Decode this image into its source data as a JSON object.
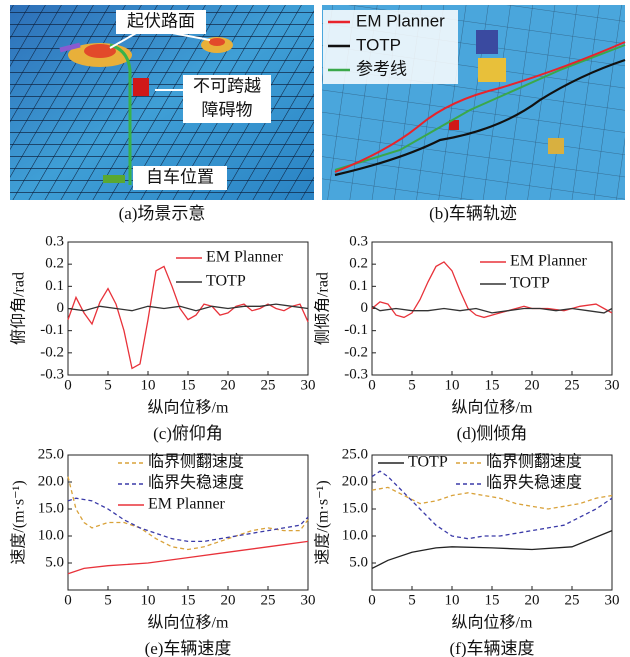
{
  "images": [
    {
      "caption": "(a)场景示意",
      "labels": [
        "起伏路面",
        "不可跨越",
        "障碍物",
        "自车位置"
      ]
    },
    {
      "caption": "(b)车辆轨迹",
      "legend": [
        {
          "name": "EM Planner",
          "color": "#e8232b"
        },
        {
          "name": "TOTP",
          "color": "#111111"
        },
        {
          "name": "参考线",
          "color": "#3aa84a"
        }
      ]
    }
  ],
  "chart_data": [
    {
      "type": "line",
      "caption": "(c)俯仰角",
      "xlabel": "纵向位移/m",
      "ylabel": "俯仰角/rad",
      "xlim": [
        0,
        30
      ],
      "xticks": [
        0,
        5,
        10,
        15,
        20,
        25,
        30
      ],
      "ylim": [
        -0.3,
        0.3
      ],
      "yticks": [
        -0.3,
        -0.2,
        -0.1,
        0,
        0.1,
        0.2,
        0.3
      ],
      "series": [
        {
          "name": "EM Planner",
          "color": "#e8323a",
          "style": "solid",
          "x": [
            0,
            1,
            2,
            3,
            4,
            5,
            6,
            7,
            8,
            9,
            10,
            11,
            12,
            13,
            14,
            15,
            16,
            17,
            18,
            19,
            20,
            21,
            22,
            23,
            24,
            25,
            26,
            27,
            28,
            29,
            30
          ],
          "values": [
            -0.05,
            0.05,
            -0.02,
            -0.07,
            0.03,
            0.09,
            0.02,
            -0.1,
            -0.27,
            -0.25,
            -0.05,
            0.17,
            0.19,
            0.1,
            0.0,
            -0.05,
            -0.03,
            0.02,
            0.01,
            -0.03,
            -0.02,
            0.01,
            0.02,
            -0.01,
            0.0,
            0.02,
            0.0,
            -0.01,
            0.01,
            0.02,
            -0.06
          ]
        },
        {
          "name": "TOTP",
          "color": "#333333",
          "style": "solid",
          "x": [
            0,
            2,
            4,
            6,
            8,
            10,
            12,
            14,
            16,
            18,
            20,
            22,
            24,
            26,
            28,
            30
          ],
          "values": [
            0.0,
            -0.01,
            0.01,
            0.0,
            -0.01,
            0.01,
            0.0,
            0.01,
            -0.01,
            0.01,
            0.0,
            0.01,
            0.01,
            0.02,
            0.01,
            0.0
          ]
        }
      ]
    },
    {
      "type": "line",
      "caption": "(d)侧倾角",
      "xlabel": "纵向位移/m",
      "ylabel": "侧倾角/rad",
      "xlim": [
        0,
        30
      ],
      "xticks": [
        0,
        5,
        10,
        15,
        20,
        25,
        30
      ],
      "ylim": [
        -0.3,
        0.3
      ],
      "yticks": [
        -0.3,
        -0.2,
        -0.1,
        0,
        0.1,
        0.2,
        0.3
      ],
      "series": [
        {
          "name": "EM Planner",
          "color": "#e8323a",
          "style": "solid",
          "x": [
            0,
            1,
            2,
            3,
            4,
            5,
            6,
            7,
            8,
            9,
            10,
            11,
            12,
            13,
            14,
            15,
            16,
            17,
            18,
            19,
            20,
            22,
            24,
            26,
            28,
            29,
            30
          ],
          "values": [
            0.0,
            0.03,
            0.02,
            -0.03,
            -0.04,
            -0.02,
            0.04,
            0.12,
            0.19,
            0.21,
            0.17,
            0.08,
            0.0,
            -0.03,
            -0.04,
            -0.03,
            -0.02,
            -0.01,
            0.0,
            0.01,
            0.0,
            0.0,
            -0.01,
            0.01,
            0.02,
            0.0,
            -0.02
          ]
        },
        {
          "name": "TOTP",
          "color": "#333333",
          "style": "solid",
          "x": [
            0,
            1,
            3,
            5,
            7,
            9,
            11,
            13,
            15,
            17,
            19,
            21,
            23,
            25,
            27,
            29,
            30
          ],
          "values": [
            0.01,
            -0.01,
            0.0,
            -0.01,
            -0.01,
            0.0,
            -0.01,
            0.0,
            -0.02,
            -0.01,
            0.0,
            0.0,
            -0.01,
            0.0,
            -0.01,
            -0.02,
            0.0
          ]
        }
      ]
    },
    {
      "type": "line",
      "caption": "(e)车辆速度",
      "xlabel": "纵向位移/m",
      "ylabel": "速度/(m·s⁻¹)",
      "xlim": [
        0,
        30
      ],
      "xticks": [
        0,
        5,
        10,
        15,
        20,
        25,
        30
      ],
      "ylim": [
        0,
        25
      ],
      "yticks": [
        {
          "value": 5,
          "label": "5.0"
        },
        {
          "value": 10,
          "label": "10.0"
        },
        {
          "value": 15,
          "label": "15.0"
        },
        {
          "value": 20,
          "label": "20.0"
        },
        {
          "value": 25,
          "label": "25.0"
        }
      ],
      "series": [
        {
          "name": "临界侧翻速度",
          "color": "#d9a23a",
          "style": "dashed",
          "x": [
            0,
            1,
            2,
            3,
            4,
            5,
            7,
            9,
            11,
            13,
            15,
            17,
            19,
            21,
            23,
            25,
            27,
            29,
            30
          ],
          "values": [
            21,
            15,
            12.5,
            11.5,
            12,
            12.5,
            12.5,
            11.5,
            9.5,
            8,
            7.5,
            8,
            9,
            10,
            11,
            11.5,
            11,
            11,
            13
          ]
        },
        {
          "name": "临界失稳速度",
          "color": "#3a3aa8",
          "style": "dashed",
          "x": [
            0,
            1,
            3,
            5,
            7,
            9,
            11,
            13,
            15,
            17,
            19,
            21,
            23,
            25,
            27,
            29,
            30
          ],
          "values": [
            16.5,
            17,
            16.5,
            15,
            13,
            11.5,
            10.5,
            9.5,
            9,
            9,
            9.5,
            10,
            10.5,
            11,
            11.5,
            12,
            13.5
          ]
        },
        {
          "name": "EM Planner",
          "color": "#e8323a",
          "style": "solid",
          "x": [
            0,
            2,
            5,
            10,
            15,
            20,
            25,
            30
          ],
          "values": [
            3,
            4,
            4.5,
            5,
            6,
            7,
            8,
            9
          ]
        }
      ]
    },
    {
      "type": "line",
      "caption": "(f)车辆速度",
      "xlabel": "纵向位移/m",
      "ylabel": "速度/(m·s⁻¹)",
      "xlim": [
        0,
        30
      ],
      "xticks": [
        0,
        5,
        10,
        15,
        20,
        25,
        30
      ],
      "ylim": [
        0,
        25
      ],
      "yticks": [
        {
          "value": 5,
          "label": "5.0"
        },
        {
          "value": 10,
          "label": "10.0"
        },
        {
          "value": 15,
          "label": "15.0"
        },
        {
          "value": 20,
          "label": "20.0"
        },
        {
          "value": 25,
          "label": "25.0"
        }
      ],
      "series": [
        {
          "name": "TOTP",
          "color": "#222222",
          "style": "solid",
          "x": [
            0,
            2,
            5,
            8,
            10,
            15,
            20,
            25,
            30
          ],
          "values": [
            4,
            5.5,
            7,
            7.8,
            8,
            7.8,
            7.5,
            8,
            11
          ]
        },
        {
          "name": "临界侧翻速度",
          "color": "#d9a23a",
          "style": "dashed",
          "x": [
            0,
            2,
            4,
            6,
            8,
            10,
            12,
            14,
            16,
            18,
            20,
            22,
            24,
            26,
            28,
            30
          ],
          "values": [
            18.5,
            19,
            17.5,
            16,
            16.5,
            17.5,
            18,
            17.5,
            17,
            16,
            15.5,
            15,
            15.5,
            16,
            17,
            17.5
          ]
        },
        {
          "name": "临界失稳速度",
          "color": "#3a3aa8",
          "style": "dashed",
          "x": [
            0,
            1,
            2,
            4,
            6,
            8,
            10,
            12,
            14,
            16,
            18,
            20,
            22,
            24,
            26,
            28,
            30
          ],
          "values": [
            21,
            22,
            21,
            18,
            15,
            12,
            10,
            9.5,
            10,
            10,
            10.5,
            11,
            11.5,
            12,
            13.5,
            15,
            17
          ]
        }
      ]
    }
  ]
}
